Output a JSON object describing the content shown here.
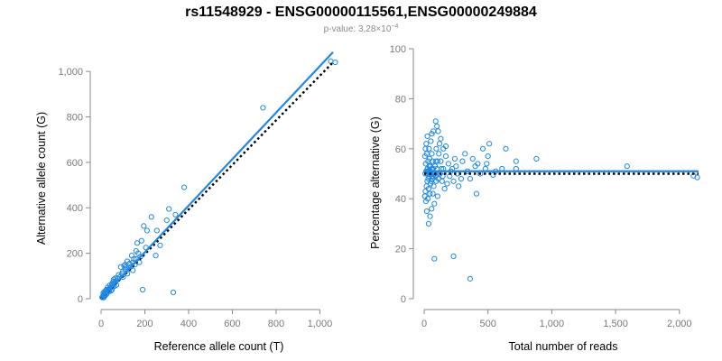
{
  "title": "rs11548929 - ENSG00000115561,ENSG00000249884",
  "subtitle_prefix": "p-value: 3,28×10",
  "subtitle_exponent": "−4",
  "colors": {
    "points": "#1e88e5",
    "fit": "#1e88e5",
    "reference": "#000000",
    "axis": "#8a8a8a"
  },
  "chart_data": [
    {
      "type": "scatter",
      "xlabel": "Reference allele count (T)",
      "ylabel": "Alternative allele count (G)",
      "xlim": [
        0,
        1060
      ],
      "ylim": [
        0,
        1060
      ],
      "xticks": [
        0,
        200,
        400,
        600,
        800,
        1000
      ],
      "xtick_labels": [
        "0",
        "200",
        "400",
        "600",
        "800",
        "1,000"
      ],
      "yticks": [
        0,
        200,
        400,
        600,
        800,
        1000
      ],
      "ytick_labels": [
        "0",
        "200",
        "400",
        "600",
        "800",
        "1,000"
      ],
      "fit_line": {
        "style": "solid",
        "points": [
          [
            0,
            0
          ],
          [
            1060,
            1085
          ]
        ]
      },
      "reference_line": {
        "style": "dotted",
        "points": [
          [
            0,
            0
          ],
          [
            1060,
            1040
          ]
        ]
      },
      "points": [
        [
          1050,
          1045
        ],
        [
          1070,
          1040
        ],
        [
          740,
          840
        ],
        [
          380,
          490
        ],
        [
          310,
          395
        ],
        [
          340,
          370
        ],
        [
          330,
          28
        ],
        [
          190,
          40
        ],
        [
          300,
          345
        ],
        [
          255,
          300
        ],
        [
          230,
          360
        ],
        [
          210,
          300
        ],
        [
          195,
          320
        ],
        [
          185,
          255
        ],
        [
          165,
          245
        ],
        [
          205,
          225
        ],
        [
          250,
          190
        ],
        [
          270,
          235
        ],
        [
          180,
          185
        ],
        [
          160,
          210
        ],
        [
          150,
          175
        ],
        [
          140,
          190
        ],
        [
          130,
          155
        ],
        [
          120,
          165
        ],
        [
          115,
          140
        ],
        [
          110,
          130
        ],
        [
          100,
          120
        ],
        [
          95,
          110
        ],
        [
          90,
          140
        ],
        [
          85,
          95
        ],
        [
          80,
          105
        ],
        [
          75,
          90
        ],
        [
          70,
          80
        ],
        [
          65,
          75
        ],
        [
          60,
          70
        ],
        [
          58,
          85
        ],
        [
          55,
          60
        ],
        [
          50,
          65
        ],
        [
          48,
          55
        ],
        [
          45,
          50
        ],
        [
          42,
          48
        ],
        [
          40,
          45
        ],
        [
          38,
          40
        ],
        [
          35,
          42
        ],
        [
          33,
          38
        ],
        [
          30,
          35
        ],
        [
          28,
          32
        ],
        [
          26,
          30
        ],
        [
          24,
          28
        ],
        [
          22,
          26
        ],
        [
          20,
          24
        ],
        [
          18,
          22
        ],
        [
          16,
          18
        ],
        [
          15,
          20
        ],
        [
          14,
          16
        ],
        [
          12,
          14
        ],
        [
          10,
          12
        ],
        [
          9,
          10
        ],
        [
          8,
          9
        ],
        [
          7,
          8
        ],
        [
          6,
          7
        ],
        [
          5,
          6
        ],
        [
          25,
          40
        ],
        [
          30,
          50
        ],
        [
          35,
          30
        ],
        [
          40,
          60
        ],
        [
          45,
          35
        ],
        [
          50,
          40
        ],
        [
          55,
          75
        ],
        [
          60,
          55
        ],
        [
          65,
          90
        ],
        [
          70,
          60
        ],
        [
          20,
          35
        ],
        [
          25,
          20
        ],
        [
          15,
          30
        ],
        [
          10,
          25
        ],
        [
          12,
          5
        ],
        [
          18,
          12
        ],
        [
          100,
          95
        ],
        [
          110,
          150
        ],
        [
          120,
          110
        ],
        [
          125,
          130
        ],
        [
          135,
          140
        ],
        [
          145,
          160
        ],
        [
          155,
          150
        ],
        [
          160,
          175
        ],
        [
          170,
          200
        ],
        [
          175,
          160
        ],
        [
          145,
          125
        ],
        [
          105,
          145
        ]
      ]
    },
    {
      "type": "scatter",
      "xlabel": "Total number of reads",
      "ylabel": "Percentage alternative (G)",
      "xlim": [
        0,
        2150
      ],
      "ylim": [
        0,
        100
      ],
      "xticks": [
        0,
        500,
        1000,
        1500,
        2000
      ],
      "xtick_labels": [
        "0",
        "500",
        "1,000",
        "1,500",
        "2,000"
      ],
      "yticks": [
        0,
        20,
        40,
        60,
        80,
        100
      ],
      "ytick_labels": [
        "0",
        "20",
        "40",
        "60",
        "80",
        "100"
      ],
      "fit_line": {
        "style": "solid",
        "points": [
          [
            0,
            51
          ],
          [
            2150,
            51
          ]
        ]
      },
      "reference_line": {
        "style": "dotted",
        "points": [
          [
            0,
            50
          ],
          [
            2150,
            50
          ]
        ]
      },
      "points": [
        [
          2140,
          48.5
        ],
        [
          2110,
          49.2
        ],
        [
          1590,
          53
        ],
        [
          880,
          56
        ],
        [
          720,
          55
        ],
        [
          720,
          52
        ],
        [
          640,
          60
        ],
        [
          610,
          52
        ],
        [
          560,
          51
        ],
        [
          540,
          49.5
        ],
        [
          510,
          62
        ],
        [
          500,
          57
        ],
        [
          490,
          54
        ],
        [
          480,
          52
        ],
        [
          460,
          60
        ],
        [
          440,
          50
        ],
        [
          420,
          54
        ],
        [
          410,
          42
        ],
        [
          400,
          53
        ],
        [
          380,
          56
        ],
        [
          360,
          8
        ],
        [
          360,
          48
        ],
        [
          340,
          51
        ],
        [
          320,
          58
        ],
        [
          300,
          55
        ],
        [
          290,
          48
        ],
        [
          270,
          45
        ],
        [
          260,
          50
        ],
        [
          250,
          53
        ],
        [
          240,
          56
        ],
        [
          230,
          47
        ],
        [
          220,
          52
        ],
        [
          210,
          51
        ],
        [
          200,
          49
        ],
        [
          190,
          54
        ],
        [
          180,
          46
        ],
        [
          170,
          57
        ],
        [
          160,
          44
        ],
        [
          150,
          52
        ],
        [
          140,
          47
        ],
        [
          130,
          55
        ],
        [
          120,
          62
        ],
        [
          115,
          58
        ],
        [
          110,
          48
        ],
        [
          105,
          41
        ],
        [
          100,
          52
        ],
        [
          95,
          60
        ],
        [
          90,
          55
        ],
        [
          85,
          50
        ],
        [
          80,
          38
        ],
        [
          80,
          16
        ],
        [
          75,
          45
        ],
        [
          72,
          67
        ],
        [
          70,
          52
        ],
        [
          68,
          42
        ],
        [
          65,
          55
        ],
        [
          62,
          48
        ],
        [
          60,
          58
        ],
        [
          58,
          36
        ],
        [
          55,
          50
        ],
        [
          52,
          63
        ],
        [
          50,
          46
        ],
        [
          48,
          53
        ],
        [
          46,
          33
        ],
        [
          45,
          42
        ],
        [
          42,
          56
        ],
        [
          40,
          49
        ],
        [
          38,
          60
        ],
        [
          36,
          51
        ],
        [
          35,
          30
        ],
        [
          34,
          44
        ],
        [
          32,
          48
        ],
        [
          30,
          55
        ],
        [
          28,
          40
        ],
        [
          26,
          52
        ],
        [
          25,
          65
        ],
        [
          24,
          47
        ],
        [
          22,
          50
        ],
        [
          20,
          35
        ],
        [
          20,
          58
        ],
        [
          18,
          45
        ],
        [
          16,
          62
        ],
        [
          15,
          51
        ],
        [
          14,
          39
        ],
        [
          12,
          54
        ],
        [
          10,
          43
        ],
        [
          10,
          60
        ],
        [
          8,
          50
        ],
        [
          6,
          57
        ],
        [
          5,
          41
        ],
        [
          230,
          17
        ],
        [
          90,
          71
        ],
        [
          100,
          69
        ],
        [
          110,
          67
        ],
        [
          60,
          66
        ],
        [
          130,
          64
        ],
        [
          150,
          60
        ],
        [
          170,
          61
        ],
        [
          40,
          53
        ],
        [
          55,
          47
        ],
        [
          70,
          49
        ],
        [
          85,
          53
        ],
        [
          95,
          47
        ],
        [
          105,
          55
        ],
        [
          125,
          50
        ],
        [
          135,
          52
        ],
        [
          145,
          49
        ],
        [
          30,
          51
        ],
        [
          50,
          51
        ],
        [
          60,
          52
        ],
        [
          75,
          50
        ],
        [
          90,
          49
        ],
        [
          45,
          50
        ],
        [
          65,
          49
        ]
      ]
    }
  ]
}
